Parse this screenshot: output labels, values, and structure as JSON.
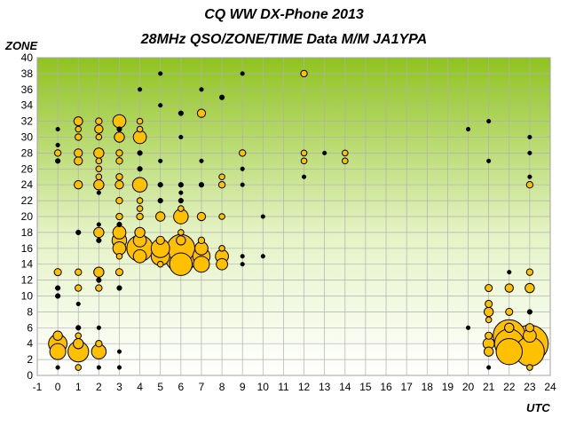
{
  "header": {
    "title": "CQ WW DX-Phone 2013",
    "subtitle": "28MHz QSO/ZONE/TIME Data M/M JA1YPA"
  },
  "chart_data": {
    "type": "scatter",
    "title": "CQ WW DX-Phone 2013",
    "subtitle": "28MHz QSO/ZONE/TIME Data M/M JA1YPA",
    "xlabel": "UTC",
    "ylabel": "ZONE",
    "xlim": [
      -1,
      24
    ],
    "ylim": [
      0,
      40
    ],
    "x_ticks": [
      -1,
      0,
      1,
      2,
      3,
      4,
      5,
      6,
      7,
      8,
      9,
      10,
      11,
      12,
      13,
      14,
      15,
      16,
      17,
      18,
      19,
      20,
      21,
      22,
      23,
      24
    ],
    "y_ticks": [
      0,
      2,
      4,
      6,
      8,
      10,
      12,
      14,
      16,
      18,
      20,
      22,
      24,
      26,
      28,
      30,
      32,
      34,
      36,
      38,
      40
    ],
    "grid": true,
    "legend": "none",
    "colors": {
      "bubble_fill": "#ffc000",
      "bubble_edge": "#000000",
      "plot_top": "#8fc31f",
      "plot_bottom": "#ffffff",
      "grid": "#b0b0b0"
    },
    "size_unit": "relative QSO count",
    "points": [
      {
        "x": 0,
        "y": 1,
        "s": 0.2
      },
      {
        "x": 0,
        "y": 3,
        "s": 3
      },
      {
        "x": 0,
        "y": 4,
        "s": 4
      },
      {
        "x": 0,
        "y": 5,
        "s": 1
      },
      {
        "x": 0,
        "y": 10,
        "s": 0.3
      },
      {
        "x": 0,
        "y": 11,
        "s": 0.3
      },
      {
        "x": 0,
        "y": 13,
        "s": 0.6
      },
      {
        "x": 0,
        "y": 27,
        "s": 0.3
      },
      {
        "x": 0,
        "y": 28,
        "s": 0.5
      },
      {
        "x": 0,
        "y": 29,
        "s": 0.2
      },
      {
        "x": 0,
        "y": 31,
        "s": 0.2
      },
      {
        "x": 1,
        "y": 1,
        "s": 0.4
      },
      {
        "x": 1,
        "y": 3,
        "s": 5
      },
      {
        "x": 1,
        "y": 4,
        "s": 1.2
      },
      {
        "x": 1,
        "y": 5,
        "s": 0.4
      },
      {
        "x": 1,
        "y": 6,
        "s": 0.3
      },
      {
        "x": 1,
        "y": 9,
        "s": 0.2
      },
      {
        "x": 1,
        "y": 11,
        "s": 0.5
      },
      {
        "x": 1,
        "y": 13,
        "s": 0.5
      },
      {
        "x": 1,
        "y": 18,
        "s": 0.3
      },
      {
        "x": 1,
        "y": 24,
        "s": 0.8
      },
      {
        "x": 1,
        "y": 27,
        "s": 0.8
      },
      {
        "x": 1,
        "y": 28,
        "s": 0.8
      },
      {
        "x": 1,
        "y": 30,
        "s": 0.5
      },
      {
        "x": 1,
        "y": 31,
        "s": 0.4
      },
      {
        "x": 1,
        "y": 32,
        "s": 0.9
      },
      {
        "x": 2,
        "y": 1,
        "s": 0.2
      },
      {
        "x": 2,
        "y": 3,
        "s": 2.5
      },
      {
        "x": 2,
        "y": 4,
        "s": 0.5
      },
      {
        "x": 2,
        "y": 6,
        "s": 0.2
      },
      {
        "x": 2,
        "y": 11,
        "s": 0.5
      },
      {
        "x": 2,
        "y": 12,
        "s": 0.3
      },
      {
        "x": 2,
        "y": 13,
        "s": 1.2
      },
      {
        "x": 2,
        "y": 17,
        "s": 0.3
      },
      {
        "x": 2,
        "y": 18,
        "s": 1.2
      },
      {
        "x": 2,
        "y": 19,
        "s": 0.2
      },
      {
        "x": 2,
        "y": 23,
        "s": 0.2
      },
      {
        "x": 2,
        "y": 24,
        "s": 1.2
      },
      {
        "x": 2,
        "y": 25,
        "s": 0.4
      },
      {
        "x": 2,
        "y": 26,
        "s": 0.4
      },
      {
        "x": 2,
        "y": 27,
        "s": 0.4
      },
      {
        "x": 2,
        "y": 28,
        "s": 1.2
      },
      {
        "x": 2,
        "y": 30,
        "s": 0.4
      },
      {
        "x": 2,
        "y": 31,
        "s": 0.8
      },
      {
        "x": 2,
        "y": 32,
        "s": 0.5
      },
      {
        "x": 3,
        "y": 1,
        "s": 0.2
      },
      {
        "x": 3,
        "y": 3,
        "s": 0.2
      },
      {
        "x": 3,
        "y": 11,
        "s": 0.3
      },
      {
        "x": 3,
        "y": 13,
        "s": 0.6
      },
      {
        "x": 3,
        "y": 15,
        "s": 0.4
      },
      {
        "x": 3,
        "y": 16,
        "s": 2
      },
      {
        "x": 3,
        "y": 17,
        "s": 2.5
      },
      {
        "x": 3,
        "y": 18,
        "s": 2
      },
      {
        "x": 3,
        "y": 19,
        "s": 0.3
      },
      {
        "x": 3,
        "y": 20,
        "s": 0.5
      },
      {
        "x": 3,
        "y": 22,
        "s": 0.5
      },
      {
        "x": 3,
        "y": 24,
        "s": 0.8
      },
      {
        "x": 3,
        "y": 25,
        "s": 0.5
      },
      {
        "x": 3,
        "y": 27,
        "s": 0.5
      },
      {
        "x": 3,
        "y": 28,
        "s": 0.5
      },
      {
        "x": 3,
        "y": 30,
        "s": 1.2
      },
      {
        "x": 3,
        "y": 31,
        "s": 0.3
      },
      {
        "x": 3,
        "y": 32,
        "s": 2
      },
      {
        "x": 4,
        "y": 15,
        "s": 2
      },
      {
        "x": 4,
        "y": 16,
        "s": 8
      },
      {
        "x": 4,
        "y": 17,
        "s": 2
      },
      {
        "x": 4,
        "y": 18,
        "s": 1.2
      },
      {
        "x": 4,
        "y": 20,
        "s": 0.5
      },
      {
        "x": 4,
        "y": 21,
        "s": 0.4
      },
      {
        "x": 4,
        "y": 22,
        "s": 0.4
      },
      {
        "x": 4,
        "y": 24,
        "s": 2.5
      },
      {
        "x": 4,
        "y": 26,
        "s": 0.3
      },
      {
        "x": 4,
        "y": 28,
        "s": 0.3
      },
      {
        "x": 4,
        "y": 30,
        "s": 2
      },
      {
        "x": 4,
        "y": 31,
        "s": 0.4
      },
      {
        "x": 4,
        "y": 32,
        "s": 0.4
      },
      {
        "x": 4,
        "y": 36,
        "s": 0.2
      },
      {
        "x": 5,
        "y": 14,
        "s": 0.4
      },
      {
        "x": 5,
        "y": 15,
        "s": 4
      },
      {
        "x": 5,
        "y": 16,
        "s": 4
      },
      {
        "x": 5,
        "y": 17,
        "s": 0.8
      },
      {
        "x": 5,
        "y": 20,
        "s": 1
      },
      {
        "x": 5,
        "y": 22,
        "s": 0.3
      },
      {
        "x": 5,
        "y": 24,
        "s": 0.3
      },
      {
        "x": 5,
        "y": 27,
        "s": 0.2
      },
      {
        "x": 5,
        "y": 34,
        "s": 0.2
      },
      {
        "x": 5,
        "y": 38,
        "s": 0.2
      },
      {
        "x": 6,
        "y": 14,
        "s": 6
      },
      {
        "x": 6,
        "y": 15,
        "s": 12
      },
      {
        "x": 6,
        "y": 16,
        "s": 9
      },
      {
        "x": 6,
        "y": 17,
        "s": 1
      },
      {
        "x": 6,
        "y": 18,
        "s": 0.4
      },
      {
        "x": 6,
        "y": 20,
        "s": 2.5
      },
      {
        "x": 6,
        "y": 21,
        "s": 0.4
      },
      {
        "x": 6,
        "y": 22,
        "s": 0.3
      },
      {
        "x": 6,
        "y": 23,
        "s": 0.2
      },
      {
        "x": 6,
        "y": 24,
        "s": 0.3
      },
      {
        "x": 6,
        "y": 30,
        "s": 0.2
      },
      {
        "x": 6,
        "y": 33,
        "s": 0.3
      },
      {
        "x": 7,
        "y": 14,
        "s": 3
      },
      {
        "x": 7,
        "y": 15,
        "s": 3.5
      },
      {
        "x": 7,
        "y": 16,
        "s": 2
      },
      {
        "x": 7,
        "y": 17,
        "s": 0.5
      },
      {
        "x": 7,
        "y": 20,
        "s": 0.8
      },
      {
        "x": 7,
        "y": 24,
        "s": 0.3
      },
      {
        "x": 7,
        "y": 27,
        "s": 0.2
      },
      {
        "x": 7,
        "y": 33,
        "s": 0.8
      },
      {
        "x": 7,
        "y": 36,
        "s": 0.2
      },
      {
        "x": 8,
        "y": 14,
        "s": 1.5
      },
      {
        "x": 8,
        "y": 15,
        "s": 2
      },
      {
        "x": 8,
        "y": 16,
        "s": 0.4
      },
      {
        "x": 8,
        "y": 20,
        "s": 0.4
      },
      {
        "x": 8,
        "y": 24,
        "s": 0.5
      },
      {
        "x": 8,
        "y": 25,
        "s": 0.4
      },
      {
        "x": 8,
        "y": 35,
        "s": 0.3
      },
      {
        "x": 9,
        "y": 14,
        "s": 0.2
      },
      {
        "x": 9,
        "y": 15,
        "s": 0.2
      },
      {
        "x": 9,
        "y": 24,
        "s": 0.2
      },
      {
        "x": 9,
        "y": 26,
        "s": 0.2
      },
      {
        "x": 9,
        "y": 28,
        "s": 0.5
      },
      {
        "x": 9,
        "y": 38,
        "s": 0.2
      },
      {
        "x": 10,
        "y": 15,
        "s": 0.2
      },
      {
        "x": 10,
        "y": 20,
        "s": 0.2
      },
      {
        "x": 12,
        "y": 25,
        "s": 0.2
      },
      {
        "x": 12,
        "y": 27,
        "s": 0.4
      },
      {
        "x": 12,
        "y": 28,
        "s": 0.4
      },
      {
        "x": 12,
        "y": 38,
        "s": 0.5
      },
      {
        "x": 13,
        "y": 28,
        "s": 0.2
      },
      {
        "x": 14,
        "y": 27,
        "s": 0.4
      },
      {
        "x": 14,
        "y": 28,
        "s": 0.4
      },
      {
        "x": 20,
        "y": 6,
        "s": 0.2
      },
      {
        "x": 20,
        "y": 31,
        "s": 0.2
      },
      {
        "x": 21,
        "y": 1,
        "s": 0.2
      },
      {
        "x": 21,
        "y": 3,
        "s": 1
      },
      {
        "x": 21,
        "y": 4,
        "s": 1.5
      },
      {
        "x": 21,
        "y": 5,
        "s": 0.6
      },
      {
        "x": 21,
        "y": 7,
        "s": 0.4
      },
      {
        "x": 21,
        "y": 8,
        "s": 1
      },
      {
        "x": 21,
        "y": 9,
        "s": 0.6
      },
      {
        "x": 21,
        "y": 11,
        "s": 0.6
      },
      {
        "x": 21,
        "y": 27,
        "s": 0.2
      },
      {
        "x": 21,
        "y": 32,
        "s": 0.2
      },
      {
        "x": 22,
        "y": 3,
        "s": 8
      },
      {
        "x": 22,
        "y": 4,
        "s": 10
      },
      {
        "x": 22,
        "y": 5,
        "s": 12
      },
      {
        "x": 22,
        "y": 6,
        "s": 1
      },
      {
        "x": 22,
        "y": 8,
        "s": 0.6
      },
      {
        "x": 22,
        "y": 11,
        "s": 0.8
      },
      {
        "x": 22,
        "y": 13,
        "s": 0.2
      },
      {
        "x": 23,
        "y": 1,
        "s": 0.4
      },
      {
        "x": 23,
        "y": 3,
        "s": 10
      },
      {
        "x": 23,
        "y": 4,
        "s": 16
      },
      {
        "x": 23,
        "y": 5,
        "s": 2
      },
      {
        "x": 23,
        "y": 6,
        "s": 0.8
      },
      {
        "x": 23,
        "y": 8,
        "s": 0.3
      },
      {
        "x": 23,
        "y": 11,
        "s": 1
      },
      {
        "x": 23,
        "y": 13,
        "s": 0.5
      },
      {
        "x": 23,
        "y": 24,
        "s": 0.5
      },
      {
        "x": 23,
        "y": 25,
        "s": 0.2
      },
      {
        "x": 23,
        "y": 28,
        "s": 0.2
      },
      {
        "x": 23,
        "y": 30,
        "s": 0.2
      }
    ]
  }
}
